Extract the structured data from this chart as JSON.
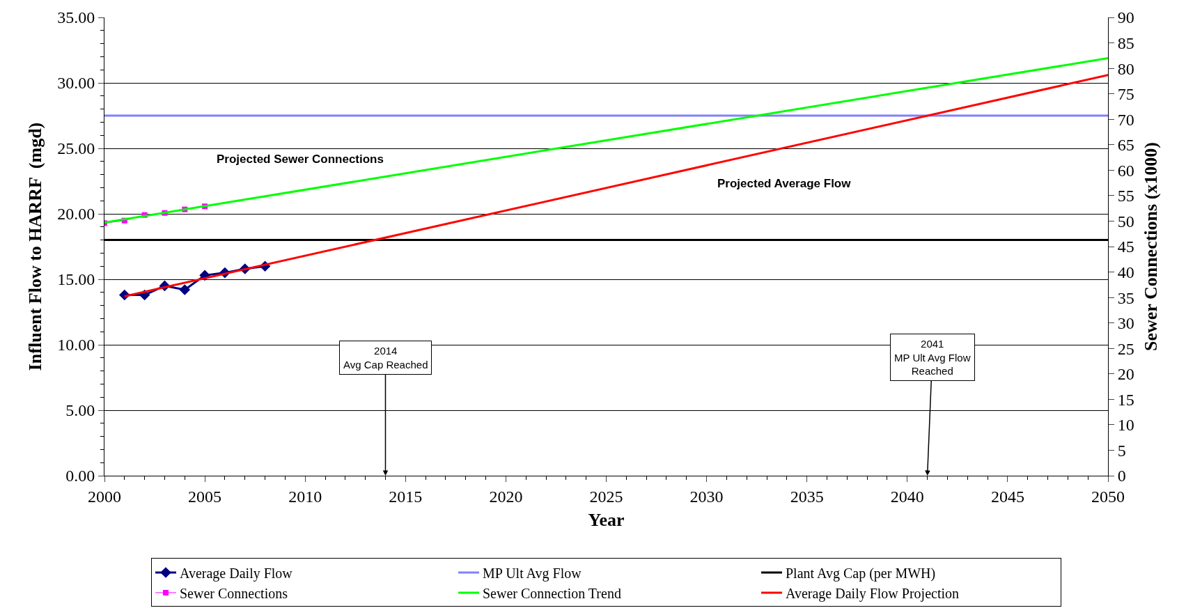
{
  "chart_data": {
    "type": "line",
    "xlabel": "Year",
    "ylabel": "Influent Flow to HARRF  (mgd)",
    "y2label": "Sewer Connections (x1000)",
    "xlim": [
      2000,
      2050
    ],
    "xticks": [
      2000,
      2005,
      2010,
      2015,
      2020,
      2025,
      2030,
      2035,
      2040,
      2045,
      2050
    ],
    "ylim": [
      0,
      35
    ],
    "yticks": [
      {
        "value": 0,
        "label": "0.00"
      },
      {
        "value": 5,
        "label": "5.00"
      },
      {
        "value": 10,
        "label": "10.00"
      },
      {
        "value": 15,
        "label": "15.00"
      },
      {
        "value": 20,
        "label": "20.00"
      },
      {
        "value": 25,
        "label": "25.00"
      },
      {
        "value": 30,
        "label": "30.00"
      },
      {
        "value": 35,
        "label": "35.00"
      }
    ],
    "y2lim": [
      0,
      90
    ],
    "y2ticks": [
      0,
      5,
      10,
      15,
      20,
      25,
      30,
      35,
      40,
      45,
      50,
      55,
      60,
      65,
      70,
      75,
      80,
      85,
      90
    ],
    "grid": "y",
    "legend": "bottom",
    "series": [
      {
        "name": "Average Daily Flow",
        "color": "#000080",
        "marker": "diamond",
        "x": [
          2001,
          2002,
          2003,
          2004,
          2005,
          2006,
          2007,
          2008
        ],
        "values": [
          13.8,
          13.8,
          14.5,
          14.2,
          15.3,
          15.5,
          15.8,
          16.0
        ]
      },
      {
        "name": "MP Ult Avg Flow",
        "color": "#8080ff",
        "marker": "none",
        "x": [
          2000,
          2050
        ],
        "values": [
          27.5,
          27.5
        ]
      },
      {
        "name": "Plant Avg Cap (per MWH)",
        "color": "#000000",
        "marker": "none",
        "x": [
          2000,
          2050
        ],
        "values": [
          18.0,
          18.0
        ]
      },
      {
        "name": "Sewer Connections",
        "color": "#ff00ff",
        "marker": "square",
        "line_style": "solid",
        "axis": "y2",
        "x": [
          2000,
          2001,
          2002,
          2003,
          2004,
          2005
        ],
        "values": [
          49.6,
          50.1,
          51.2,
          51.6,
          52.3,
          52.9
        ]
      },
      {
        "name": "Sewer Connection Trend",
        "color": "#00ff00",
        "marker": "none",
        "axis": "y2",
        "x": [
          2000,
          2050
        ],
        "values": [
          49.7,
          82.0
        ]
      },
      {
        "name": "Average Daily Flow Projection",
        "color": "#ff0000",
        "marker": "none",
        "x": [
          2001,
          2050
        ],
        "values": [
          13.7,
          30.6
        ]
      }
    ],
    "annotations": [
      "2014\nAvg Cap Reached",
      "2041\nMP Ult Avg Flow\nReached",
      "Projected Sewer Connections",
      "Projected Average Flow"
    ]
  }
}
